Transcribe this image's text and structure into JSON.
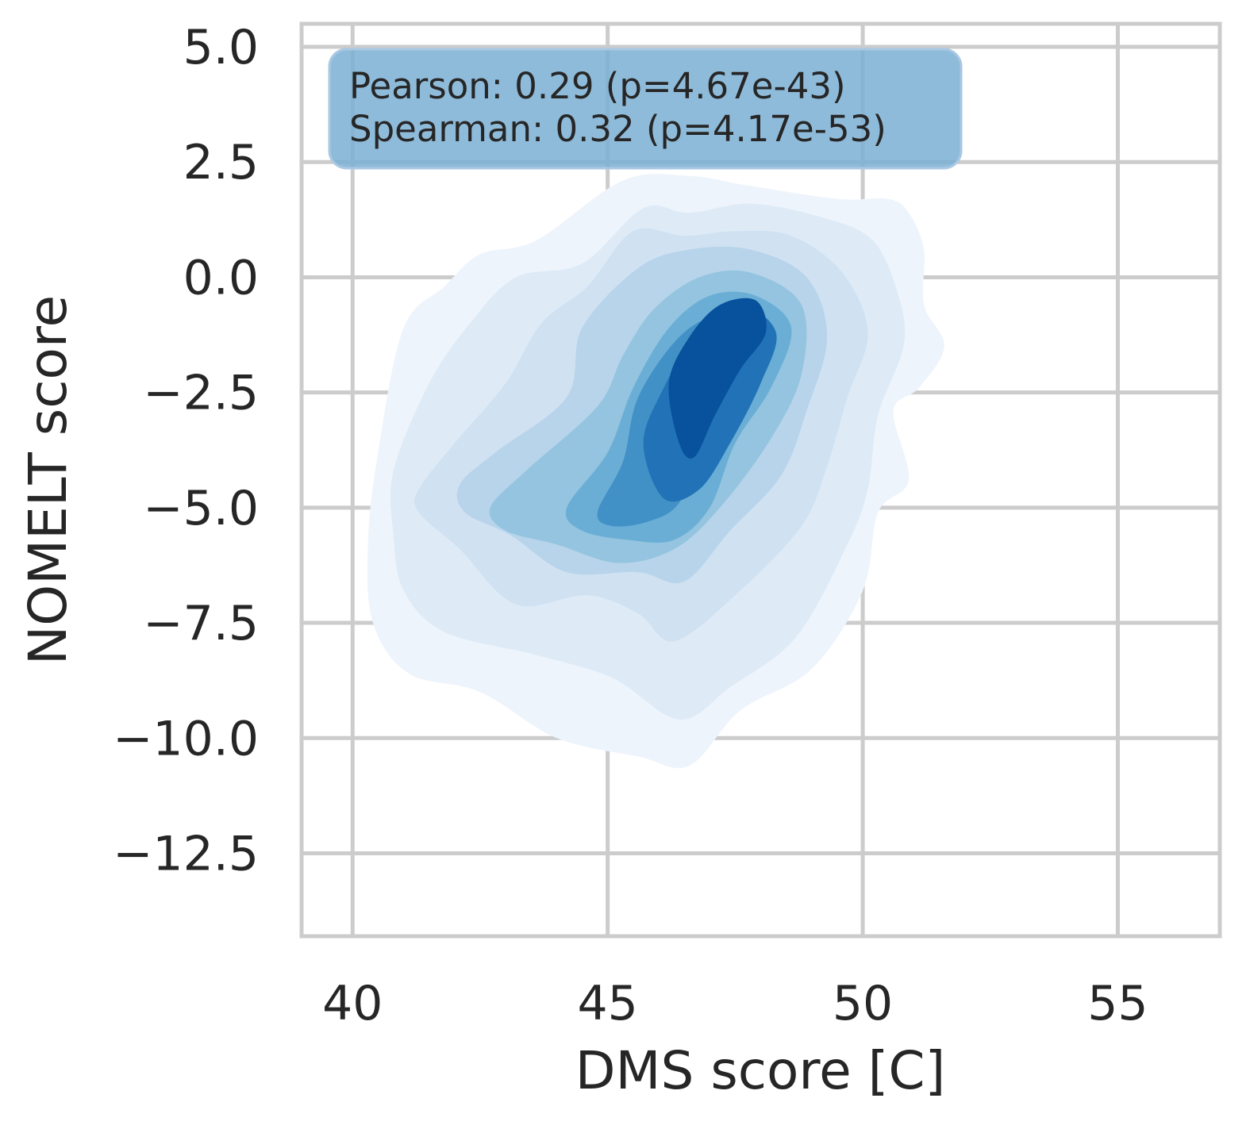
{
  "chart_data": {
    "type": "kde",
    "title": "",
    "xlabel": "DMS score [C]",
    "ylabel": "NOMELT score",
    "xlim": [
      39.0,
      57.0
    ],
    "ylim": [
      -14.3,
      5.5
    ],
    "x_ticks": [
      {
        "value": 40,
        "label": "40"
      },
      {
        "value": 45,
        "label": "45"
      },
      {
        "value": 50,
        "label": "50"
      },
      {
        "value": 55,
        "label": "55"
      }
    ],
    "y_ticks": [
      {
        "value": 5.0,
        "label": "5.0"
      },
      {
        "value": 2.5,
        "label": "2.5"
      },
      {
        "value": 0.0,
        "label": "0.0"
      },
      {
        "value": -2.5,
        "label": "−2.5"
      },
      {
        "value": -5.0,
        "label": "−5.0"
      },
      {
        "value": -7.5,
        "label": "−7.5"
      },
      {
        "value": -10.0,
        "label": "−10.0"
      },
      {
        "value": -12.5,
        "label": "−12.5"
      }
    ],
    "grid": true,
    "colormap": "Blues",
    "density_levels": [
      {
        "level": 1,
        "color": "#eef4fc",
        "points": [
          [
            40.3,
            -5.8
          ],
          [
            40.5,
            -3.8
          ],
          [
            41.0,
            -1.1
          ],
          [
            41.8,
            -0.2
          ],
          [
            42.5,
            0.5
          ],
          [
            43.6,
            0.8
          ],
          [
            45.3,
            2.1
          ],
          [
            46.6,
            2.2
          ],
          [
            47.7,
            2.0
          ],
          [
            49.5,
            1.7
          ],
          [
            50.5,
            1.7
          ],
          [
            50.9,
            1.4
          ],
          [
            51.2,
            0.6
          ],
          [
            51.2,
            -0.6
          ],
          [
            51.6,
            -1.5
          ],
          [
            51.1,
            -2.4
          ],
          [
            50.6,
            -2.9
          ],
          [
            50.9,
            -4.4
          ],
          [
            50.3,
            -5.1
          ],
          [
            50.0,
            -6.8
          ],
          [
            49.0,
            -8.5
          ],
          [
            47.6,
            -9.4
          ],
          [
            46.6,
            -10.6
          ],
          [
            45.6,
            -10.4
          ],
          [
            44.0,
            -10.0
          ],
          [
            42.5,
            -9.0
          ],
          [
            41.1,
            -8.6
          ],
          [
            40.4,
            -7.5
          ]
        ]
      },
      {
        "level": 2,
        "color": "#deebf7",
        "points": [
          [
            40.8,
            -5.6
          ],
          [
            40.8,
            -4.2
          ],
          [
            41.5,
            -2.3
          ],
          [
            42.3,
            -1.0
          ],
          [
            43.2,
            0.0
          ],
          [
            44.5,
            0.3
          ],
          [
            45.7,
            1.5
          ],
          [
            46.6,
            1.4
          ],
          [
            47.8,
            1.6
          ],
          [
            49.2,
            1.3
          ],
          [
            50.2,
            0.8
          ],
          [
            50.7,
            -0.4
          ],
          [
            50.8,
            -1.5
          ],
          [
            50.3,
            -3.0
          ],
          [
            50.1,
            -4.6
          ],
          [
            49.7,
            -5.8
          ],
          [
            48.7,
            -7.8
          ],
          [
            47.4,
            -8.9
          ],
          [
            46.4,
            -9.6
          ],
          [
            45.1,
            -8.7
          ],
          [
            43.6,
            -8.2
          ],
          [
            41.8,
            -7.7
          ],
          [
            41.0,
            -6.8
          ]
        ]
      },
      {
        "level": 3,
        "color": "#d0e1f2",
        "points": [
          [
            41.3,
            -4.6
          ],
          [
            42.0,
            -3.6
          ],
          [
            43.0,
            -2.3
          ],
          [
            43.7,
            -1.0
          ],
          [
            44.6,
            -0.2
          ],
          [
            45.5,
            1.0
          ],
          [
            46.5,
            0.9
          ],
          [
            47.5,
            1.0
          ],
          [
            48.6,
            0.9
          ],
          [
            49.6,
            0.1
          ],
          [
            50.1,
            -1.2
          ],
          [
            49.7,
            -2.6
          ],
          [
            49.3,
            -4.1
          ],
          [
            48.8,
            -5.4
          ],
          [
            47.5,
            -6.9
          ],
          [
            46.3,
            -7.9
          ],
          [
            45.6,
            -7.3
          ],
          [
            44.6,
            -6.9
          ],
          [
            43.2,
            -7.1
          ],
          [
            42.1,
            -5.9
          ],
          [
            41.3,
            -5.1
          ]
        ]
      },
      {
        "level": 4,
        "color": "#b7d4ea",
        "points": [
          [
            42.1,
            -4.5
          ],
          [
            42.8,
            -3.8
          ],
          [
            44.2,
            -2.6
          ],
          [
            44.5,
            -1.1
          ],
          [
            45.6,
            0.2
          ],
          [
            46.6,
            0.6
          ],
          [
            47.8,
            0.6
          ],
          [
            48.9,
            0.0
          ],
          [
            49.3,
            -1.3
          ],
          [
            48.9,
            -2.9
          ],
          [
            48.4,
            -4.3
          ],
          [
            47.4,
            -5.5
          ],
          [
            46.5,
            -6.6
          ],
          [
            45.6,
            -6.4
          ],
          [
            44.2,
            -6.4
          ],
          [
            43.1,
            -5.6
          ],
          [
            42.2,
            -5.1
          ]
        ]
      },
      {
        "level": 5,
        "color": "#94c4df",
        "points": [
          [
            42.7,
            -5.0
          ],
          [
            43.4,
            -4.2
          ],
          [
            44.8,
            -2.8
          ],
          [
            45.3,
            -1.7
          ],
          [
            45.9,
            -0.7
          ],
          [
            46.8,
            0.0
          ],
          [
            47.8,
            0.1
          ],
          [
            48.8,
            -0.6
          ],
          [
            48.8,
            -2.1
          ],
          [
            48.2,
            -3.5
          ],
          [
            47.2,
            -5.0
          ],
          [
            46.3,
            -5.9
          ],
          [
            45.2,
            -6.2
          ],
          [
            44.0,
            -5.8
          ],
          [
            43.0,
            -5.5
          ]
        ]
      },
      {
        "level": 6,
        "color": "#6aaed6",
        "points": [
          [
            44.2,
            -5.0
          ],
          [
            45.0,
            -3.8
          ],
          [
            45.5,
            -2.4
          ],
          [
            46.2,
            -1.1
          ],
          [
            47.0,
            -0.4
          ],
          [
            47.9,
            -0.4
          ],
          [
            48.6,
            -1.1
          ],
          [
            48.2,
            -2.4
          ],
          [
            47.5,
            -3.6
          ],
          [
            47.0,
            -5.0
          ],
          [
            46.3,
            -5.7
          ],
          [
            45.4,
            -5.7
          ],
          [
            44.5,
            -5.5
          ]
        ]
      },
      {
        "level": 7,
        "color": "#4191c6",
        "points": [
          [
            44.8,
            -5.1
          ],
          [
            45.3,
            -4.0
          ],
          [
            45.6,
            -2.6
          ],
          [
            46.4,
            -1.3
          ],
          [
            47.2,
            -0.8
          ],
          [
            48.0,
            -0.8
          ],
          [
            48.1,
            -1.6
          ],
          [
            47.6,
            -2.7
          ],
          [
            46.9,
            -3.7
          ],
          [
            46.4,
            -4.9
          ],
          [
            45.8,
            -5.3
          ],
          [
            45.1,
            -5.4
          ]
        ]
      },
      {
        "level": 8,
        "color": "#2172b6",
        "points": [
          [
            45.7,
            -3.6
          ],
          [
            46.1,
            -2.4
          ],
          [
            46.8,
            -1.1
          ],
          [
            47.6,
            -0.6
          ],
          [
            48.3,
            -1.2
          ],
          [
            48.0,
            -2.3
          ],
          [
            47.4,
            -3.6
          ],
          [
            46.8,
            -4.6
          ],
          [
            46.1,
            -4.8
          ]
        ]
      },
      {
        "level": 9,
        "color": "#08519c",
        "points": [
          [
            46.2,
            -2.3
          ],
          [
            46.6,
            -1.3
          ],
          [
            47.2,
            -0.6
          ],
          [
            47.9,
            -0.5
          ],
          [
            48.1,
            -1.2
          ],
          [
            47.6,
            -2.0
          ],
          [
            47.1,
            -3.0
          ],
          [
            46.7,
            -3.9
          ],
          [
            46.4,
            -3.6
          ]
        ]
      }
    ],
    "annotation": {
      "lines": [
        "Pearson: 0.29 (p=4.67e-43)",
        "Spearman: 0.32 (p=4.17e-53)"
      ],
      "box_color": "#7bafd4"
    }
  }
}
